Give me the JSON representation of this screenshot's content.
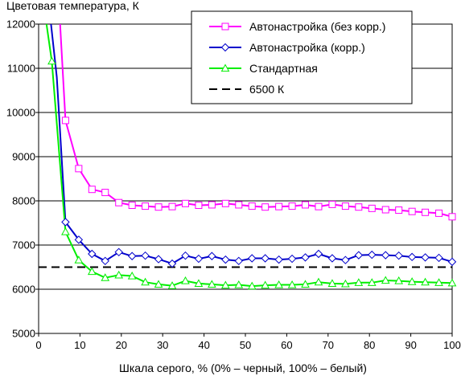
{
  "chart_data": {
    "type": "line",
    "title": "",
    "ylabel": "Цветовая температура, К",
    "xlabel": "Шкала серого, % (0% – черный, 100% – белый)",
    "xlim": [
      0,
      100
    ],
    "ylim": [
      5000,
      12000
    ],
    "xticks": [
      "0",
      "10",
      "20",
      "30",
      "40",
      "50",
      "60",
      "70",
      "80",
      "90",
      "100"
    ],
    "yticks": [
      "5000",
      "6000",
      "7000",
      "8000",
      "9000",
      "10000",
      "11000",
      "12000"
    ],
    "grid": "horizontal",
    "legend_position": "top-right",
    "series": [
      {
        "name": "Автонастройка (без корр.)",
        "color": "#ff00ff",
        "marker": "square",
        "x": [
          6.5,
          9.7,
          12.9,
          16.1,
          19.4,
          22.6,
          25.8,
          29,
          32.3,
          35.5,
          38.7,
          41.9,
          45.2,
          48.4,
          51.6,
          54.8,
          58.1,
          61.3,
          64.5,
          67.7,
          71,
          74.2,
          77.4,
          80.6,
          83.9,
          87.1,
          90.3,
          93.5,
          96.8,
          100
        ],
        "y": [
          9820,
          8730,
          8260,
          8190,
          7960,
          7900,
          7880,
          7860,
          7870,
          7940,
          7900,
          7910,
          7940,
          7910,
          7880,
          7860,
          7870,
          7880,
          7910,
          7870,
          7920,
          7880,
          7860,
          7830,
          7800,
          7790,
          7760,
          7740,
          7720,
          7640
        ]
      },
      {
        "name": "Автонастройка (корр.)",
        "color": "#0000cc",
        "marker": "diamond",
        "x": [
          6.5,
          9.7,
          12.9,
          16.1,
          19.4,
          22.6,
          25.8,
          29,
          32.3,
          35.5,
          38.7,
          41.9,
          45.2,
          48.4,
          51.6,
          54.8,
          58.1,
          61.3,
          64.5,
          67.7,
          71,
          74.2,
          77.4,
          80.6,
          83.9,
          87.1,
          90.3,
          93.5,
          96.8,
          100
        ],
        "y": [
          7520,
          7120,
          6800,
          6640,
          6840,
          6750,
          6760,
          6680,
          6580,
          6760,
          6690,
          6750,
          6670,
          6640,
          6700,
          6700,
          6670,
          6690,
          6720,
          6800,
          6700,
          6660,
          6770,
          6780,
          6770,
          6760,
          6730,
          6720,
          6710,
          6620
        ]
      },
      {
        "name": "Стандартная",
        "color": "#00ee00",
        "marker": "triangle",
        "x": [
          3.2,
          6.5,
          9.7,
          12.9,
          16.1,
          19.4,
          22.6,
          25.8,
          29,
          32.3,
          35.5,
          38.7,
          41.9,
          45.2,
          48.4,
          51.6,
          54.8,
          58.1,
          61.3,
          64.5,
          67.7,
          71,
          74.2,
          77.4,
          80.6,
          83.9,
          87.1,
          90.3,
          93.5,
          96.8,
          100
        ],
        "y": [
          11160,
          7300,
          6660,
          6400,
          6260,
          6320,
          6300,
          6160,
          6110,
          6080,
          6190,
          6130,
          6110,
          6090,
          6100,
          6070,
          6090,
          6100,
          6100,
          6110,
          6160,
          6130,
          6120,
          6150,
          6150,
          6200,
          6190,
          6170,
          6160,
          6150,
          6140
        ]
      },
      {
        "name": "6500 К",
        "color": "#000000",
        "marker": "none",
        "dashed": true,
        "x": [
          0,
          100
        ],
        "y": [
          6500,
          6500
        ]
      }
    ],
    "steep_start": [
      {
        "series": 0,
        "x": [
          5.2,
          6.5
        ],
        "y": [
          12000,
          9820
        ]
      },
      {
        "series": 1,
        "x": [
          3.0,
          4.4,
          6.5
        ],
        "y": [
          12000,
          10800,
          7520
        ]
      },
      {
        "series": 2,
        "x": [
          1.9,
          3.2
        ],
        "y": [
          12000,
          11160
        ]
      }
    ]
  }
}
